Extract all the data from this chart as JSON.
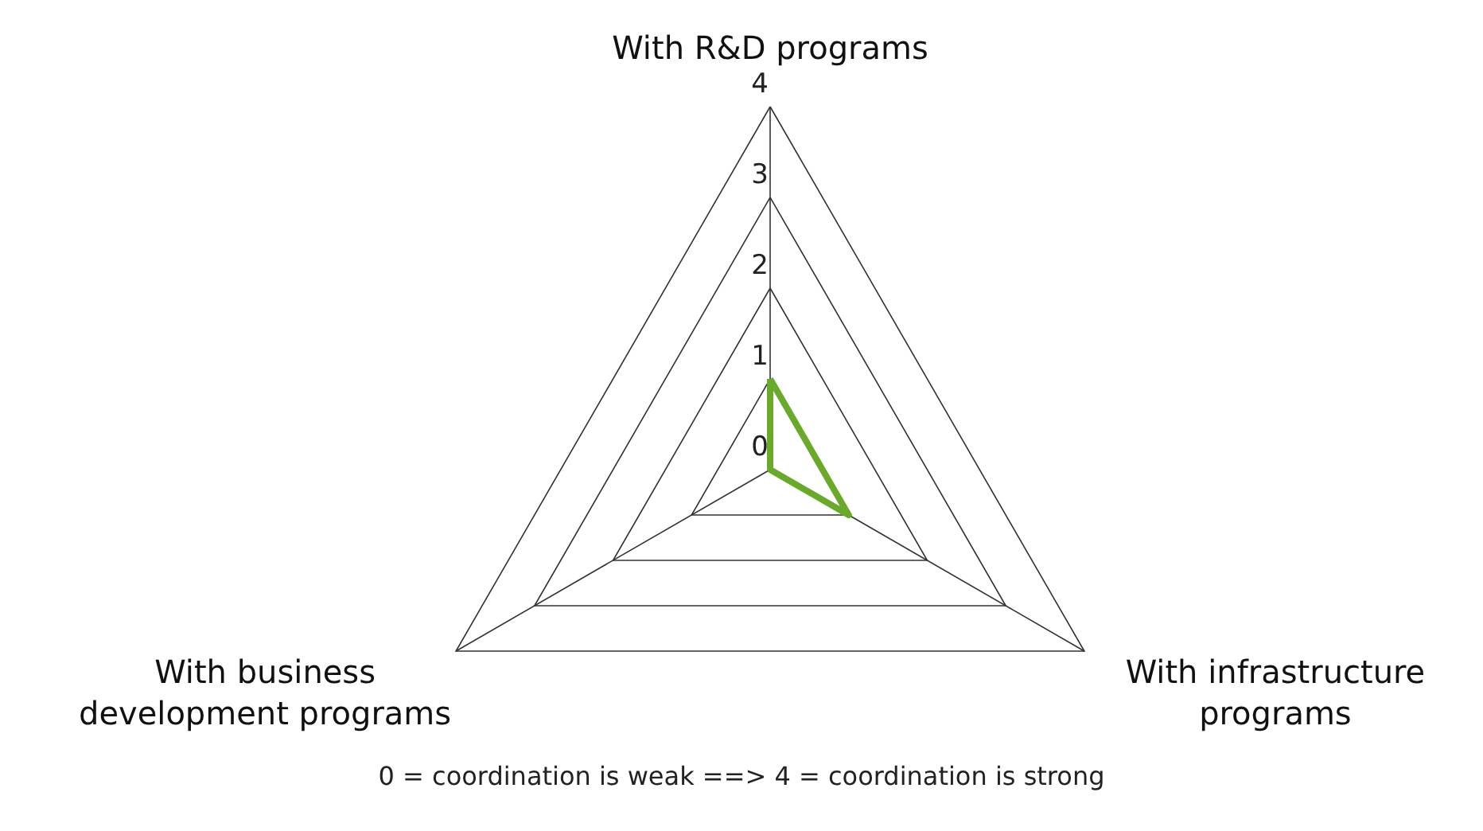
{
  "chart_data": {
    "type": "radar",
    "categories": [
      "With R&D programs",
      "With infrastructure\nprograms",
      "With business\ndevelopment programs"
    ],
    "series": [
      {
        "color": "#6aaa2a",
        "values": [
          1,
          1,
          0
        ]
      }
    ],
    "ylim": [
      0,
      4
    ],
    "yticks": [
      0,
      1,
      2,
      3,
      4
    ],
    "grid": true,
    "annotations": [
      "0 = coordination is weak ==> 4 = coordination is strong"
    ]
  }
}
